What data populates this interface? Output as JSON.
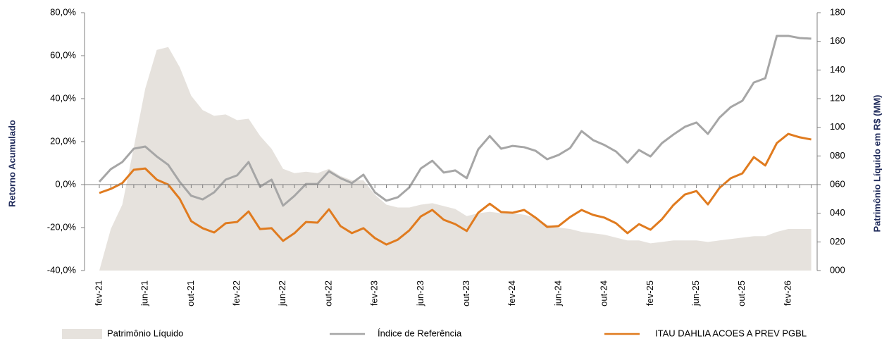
{
  "chart_data": {
    "type": "line",
    "categories": [
      "fev-21",
      null,
      null,
      null,
      "jun-21",
      null,
      null,
      null,
      "out-21",
      null,
      null,
      null,
      "fev-22",
      null,
      null,
      null,
      "jun-22",
      null,
      null,
      null,
      "out-22",
      null,
      null,
      null,
      "fev-23",
      null,
      null,
      null,
      "jun-23",
      null,
      null,
      null,
      "out-23",
      null,
      null,
      null,
      "fev-24",
      null,
      null,
      null,
      "jun-24",
      null,
      null,
      null,
      "out-24",
      null,
      null,
      null,
      "fev-25",
      null,
      null,
      null,
      "jun-25",
      null,
      null,
      null,
      "out-25",
      null,
      null,
      null,
      "fev-26",
      null,
      null
    ],
    "y_label": "Retorno Acumulado",
    "y2_label": "Patrimônio Líquido em R$ (MM)",
    "ylim": [
      -40,
      80
    ],
    "yticks": [
      {
        "value": -40,
        "label": "-40,0%"
      },
      {
        "value": -20,
        "label": "-20,0%"
      },
      {
        "value": 0,
        "label": "0,0%"
      },
      {
        "value": 20,
        "label": "20,0%"
      },
      {
        "value": 40,
        "label": "40,0%"
      },
      {
        "value": 60,
        "label": "60,0%"
      },
      {
        "value": 80,
        "label": "80,0%"
      }
    ],
    "y2lim": [
      0,
      180
    ],
    "y2ticks": [
      {
        "value": 0,
        "label": "000"
      },
      {
        "value": 20,
        "label": "020"
      },
      {
        "value": 40,
        "label": "040"
      },
      {
        "value": 60,
        "label": "060"
      },
      {
        "value": 80,
        "label": "080"
      },
      100,
      120,
      140,
      160,
      180
    ],
    "series": [
      {
        "name": "Patrimônio Líquido",
        "type": "area",
        "axis": "y2",
        "color": "#e6e2dd",
        "values": [
          0,
          29,
          46,
          86,
          127,
          154,
          156,
          142,
          122,
          112,
          108,
          109,
          105,
          106,
          94,
          85,
          71,
          68,
          69,
          68,
          71,
          66,
          63,
          63,
          53,
          46,
          44,
          44,
          46,
          47,
          45,
          43,
          38,
          40,
          41,
          40,
          40,
          39,
          37,
          32,
          30,
          29,
          27,
          26,
          25,
          23,
          21,
          21,
          19,
          20,
          21,
          21,
          21,
          20,
          21,
          22,
          23,
          24,
          24,
          27,
          29,
          29,
          29
        ]
      },
      {
        "name": "Índice de Referência",
        "type": "line",
        "color": "#a6a6a6",
        "values": [
          1.3,
          7.2,
          10.5,
          16.7,
          17.7,
          13.1,
          9.2,
          1.3,
          -5.2,
          -6.9,
          -3.6,
          2.3,
          4.3,
          10.5,
          -1.0,
          2.3,
          -9.8,
          -5.2,
          0.3,
          0.3,
          6.2,
          3.0,
          0.7,
          4.6,
          -3.6,
          -7.5,
          -5.9,
          -1.3,
          7.5,
          11.1,
          5.6,
          6.6,
          3.0,
          16.4,
          22.6,
          16.7,
          18.0,
          17.4,
          15.7,
          11.8,
          13.8,
          17.0,
          24.9,
          20.7,
          18.4,
          15.4,
          10.2,
          16.1,
          13.1,
          19.3,
          23.3,
          26.9,
          28.9,
          23.6,
          31.1,
          36.1,
          39.0,
          47.5,
          49.5,
          69.2,
          69.2,
          68.2,
          67.9
        ]
      },
      {
        "name": "ITAU DAHLIA ACOES A PREV PGBL",
        "type": "line",
        "color": "#e07b1f",
        "values": [
          -3.9,
          -2.0,
          0.7,
          6.9,
          7.5,
          2.3,
          0,
          -6.6,
          -17.0,
          -20.3,
          -22.3,
          -18.0,
          -17.4,
          -12.5,
          -20.7,
          -20.3,
          -26.2,
          -22.6,
          -17.4,
          -17.7,
          -11.5,
          -19.3,
          -22.6,
          -20.3,
          -24.9,
          -27.9,
          -25.6,
          -21.3,
          -14.8,
          -11.8,
          -16.4,
          -18.4,
          -21.6,
          -13.1,
          -8.9,
          -12.8,
          -13.1,
          -11.8,
          -15.4,
          -19.7,
          -19.3,
          -15.1,
          -11.8,
          -14.1,
          -15.4,
          -18.0,
          -22.6,
          -18.4,
          -21.0,
          -16.1,
          -9.5,
          -4.6,
          -3.0,
          -9.2,
          -1.6,
          3.0,
          5.2,
          12.8,
          8.9,
          19.3,
          23.6,
          22.0,
          21.0
        ]
      }
    ]
  }
}
